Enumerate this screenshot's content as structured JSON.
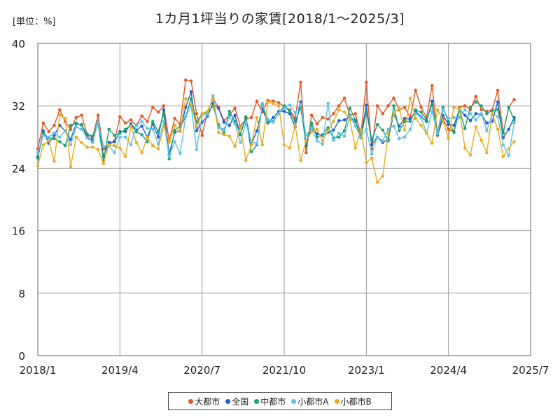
{
  "chart_data": {
    "type": "line",
    "title": "1カ月1坪当りの家賃[2018/1～2025/3]",
    "unit_label": "[単位：%]",
    "xlabel": "",
    "ylabel": "",
    "ylim": [
      0,
      40
    ],
    "yticks": [
      0,
      8,
      16,
      24,
      32,
      40
    ],
    "xlim": [
      "2018/1",
      "2025/7"
    ],
    "xticks": [
      "2018/1",
      "2019/4",
      "2020/7",
      "2021/10",
      "2023/1",
      "2024/4",
      "2025/7"
    ],
    "start_month": "2018/1",
    "grid": true,
    "legend_position": "bottom",
    "series": [
      {
        "name": "大都市",
        "color": "#e8541e",
        "values": [
          26.5,
          29.8,
          28.7,
          29.5,
          31.5,
          30.0,
          29.0,
          30.5,
          30.8,
          28.3,
          27.9,
          30.8,
          26.5,
          27.0,
          27.5,
          30.6,
          29.8,
          30.2,
          29.5,
          30.7,
          30.0,
          31.8,
          31.2,
          32.0,
          27.5,
          30.4,
          29.7,
          35.3,
          35.2,
          31.0,
          28.2,
          31.3,
          32.9,
          31.8,
          30.1,
          30.8,
          31.7,
          29.4,
          30.3,
          30.5,
          32.6,
          31.2,
          32.7,
          32.6,
          32.4,
          31.9,
          31.5,
          30.4,
          35.0,
          26.0,
          30.8,
          29.7,
          30.5,
          30.3,
          31.0,
          32.0,
          33.0,
          30.8,
          31.0,
          28.3,
          35.0,
          26.5,
          32.0,
          31.0,
          32.0,
          33.0,
          31.5,
          31.8,
          30.5,
          34.0,
          31.8,
          30.5,
          34.6,
          28.2,
          30.3,
          29.0,
          28.7,
          31.8,
          32.0,
          31.5,
          33.2,
          31.5,
          31.3,
          31.5,
          34.0,
          28.5,
          31.8,
          32.8
        ]
      },
      {
        "name": "全国",
        "color": "#1c5fd6",
        "values": [
          25.5,
          28.8,
          27.2,
          28.2,
          29.5,
          28.8,
          27.7,
          29.7,
          29.6,
          28.0,
          27.6,
          30.0,
          25.5,
          27.3,
          27.4,
          28.7,
          28.7,
          29.7,
          28.9,
          29.4,
          28.0,
          29.7,
          28.0,
          31.5,
          25.8,
          28.6,
          28.8,
          31.8,
          33.8,
          28.8,
          29.9,
          30.7,
          32.3,
          31.7,
          29.9,
          29.5,
          30.8,
          28.3,
          30.5,
          27.1,
          28.8,
          31.7,
          29.8,
          30.5,
          31.3,
          31.3,
          31.0,
          29.3,
          32.5,
          26.9,
          29.3,
          28.4,
          28.2,
          28.6,
          28.9,
          30.1,
          30.2,
          30.6,
          30.0,
          28.0,
          32.1,
          27.0,
          28.0,
          27.3,
          27.7,
          31.0,
          29.4,
          30.4,
          30.3,
          31.3,
          30.6,
          30.0,
          32.6,
          28.3,
          30.8,
          29.6,
          29.5,
          31.5,
          30.8,
          30.1,
          31.0,
          30.9,
          29.8,
          30.0,
          32.5,
          27.9,
          29.0,
          30.5
        ]
      },
      {
        "name": "中都市",
        "color": "#1aa273",
        "values": [
          25.3,
          28.5,
          27.9,
          27.8,
          27.4,
          26.9,
          29.5,
          29.8,
          29.5,
          28.4,
          28.1,
          29.8,
          25.0,
          29.0,
          28.2,
          28.5,
          29.0,
          29.5,
          28.7,
          28.3,
          27.4,
          30.0,
          28.7,
          31.0,
          25.2,
          28.9,
          29.3,
          30.6,
          32.9,
          29.9,
          31.0,
          31.1,
          32.0,
          29.6,
          28.5,
          31.3,
          30.0,
          28.4,
          30.6,
          26.1,
          27.0,
          32.1,
          29.9,
          30.0,
          31.0,
          32.0,
          31.3,
          30.0,
          31.8,
          27.2,
          29.8,
          28.0,
          28.3,
          29.2,
          27.9,
          28.0,
          28.8,
          31.7,
          30.2,
          27.9,
          31.3,
          27.6,
          29.6,
          28.9,
          27.5,
          32.0,
          28.8,
          30.0,
          30.0,
          31.5,
          31.2,
          30.2,
          32.2,
          28.6,
          31.8,
          30.0,
          28.6,
          31.5,
          29.1,
          31.8,
          32.5,
          32.0,
          31.0,
          31.4,
          31.5,
          28.5,
          31.8,
          30.2
        ]
      },
      {
        "name": "小都市A",
        "color": "#5cc1ea",
        "values": [
          26.0,
          28.2,
          28.0,
          28.5,
          28.0,
          28.8,
          27.0,
          29.3,
          29.0,
          27.9,
          27.3,
          29.9,
          26.8,
          26.9,
          26.0,
          28.0,
          28.0,
          27.0,
          29.5,
          30.0,
          29.1,
          29.0,
          27.1,
          30.0,
          25.6,
          27.4,
          25.9,
          30.6,
          32.0,
          26.4,
          30.8,
          30.9,
          33.3,
          29.2,
          29.0,
          30.6,
          29.7,
          27.3,
          29.8,
          27.4,
          27.2,
          32.3,
          30.3,
          29.9,
          31.0,
          31.7,
          32.1,
          31.1,
          32.2,
          28.2,
          29.2,
          27.5,
          27.1,
          32.3,
          27.6,
          28.5,
          28.1,
          30.7,
          29.4,
          28.0,
          29.0,
          25.8,
          28.0,
          27.5,
          29.0,
          29.4,
          27.8,
          28.0,
          29.0,
          31.0,
          30.5,
          28.5,
          31.3,
          28.4,
          31.5,
          30.4,
          30.5,
          30.5,
          31.5,
          31.0,
          30.2,
          31.0,
          28.8,
          31.0,
          30.6,
          27.0,
          25.6,
          29.8
        ]
      },
      {
        "name": "小都市B",
        "color": "#eaaa1c",
        "values": [
          24.3,
          27.0,
          27.5,
          24.9,
          30.8,
          30.4,
          24.2,
          28.0,
          27.3,
          26.7,
          26.7,
          26.4,
          24.6,
          27.0,
          26.9,
          26.6,
          25.5,
          29.4,
          27.3,
          26.0,
          28.0,
          26.9,
          26.5,
          29.4,
          27.4,
          29.5,
          28.7,
          32.9,
          32.2,
          29.3,
          31.0,
          31.3,
          33.0,
          28.6,
          28.3,
          28.1,
          26.8,
          29.3,
          25.0,
          27.0,
          30.5,
          27.0,
          32.5,
          32.3,
          32.0,
          27.0,
          26.6,
          29.5,
          25.0,
          27.5,
          28.7,
          29.0,
          27.5,
          28.8,
          30.0,
          31.5,
          31.2,
          30.2,
          26.6,
          29.0,
          24.7,
          25.3,
          22.2,
          23.0,
          28.5,
          31.0,
          31.7,
          28.9,
          33.0,
          30.4,
          29.5,
          28.5,
          27.2,
          31.5,
          30.1,
          27.8,
          31.8,
          31.6,
          26.6,
          25.7,
          29.3,
          27.6,
          26.0,
          31.0,
          29.0,
          25.5,
          26.5,
          27.4
        ]
      }
    ]
  }
}
